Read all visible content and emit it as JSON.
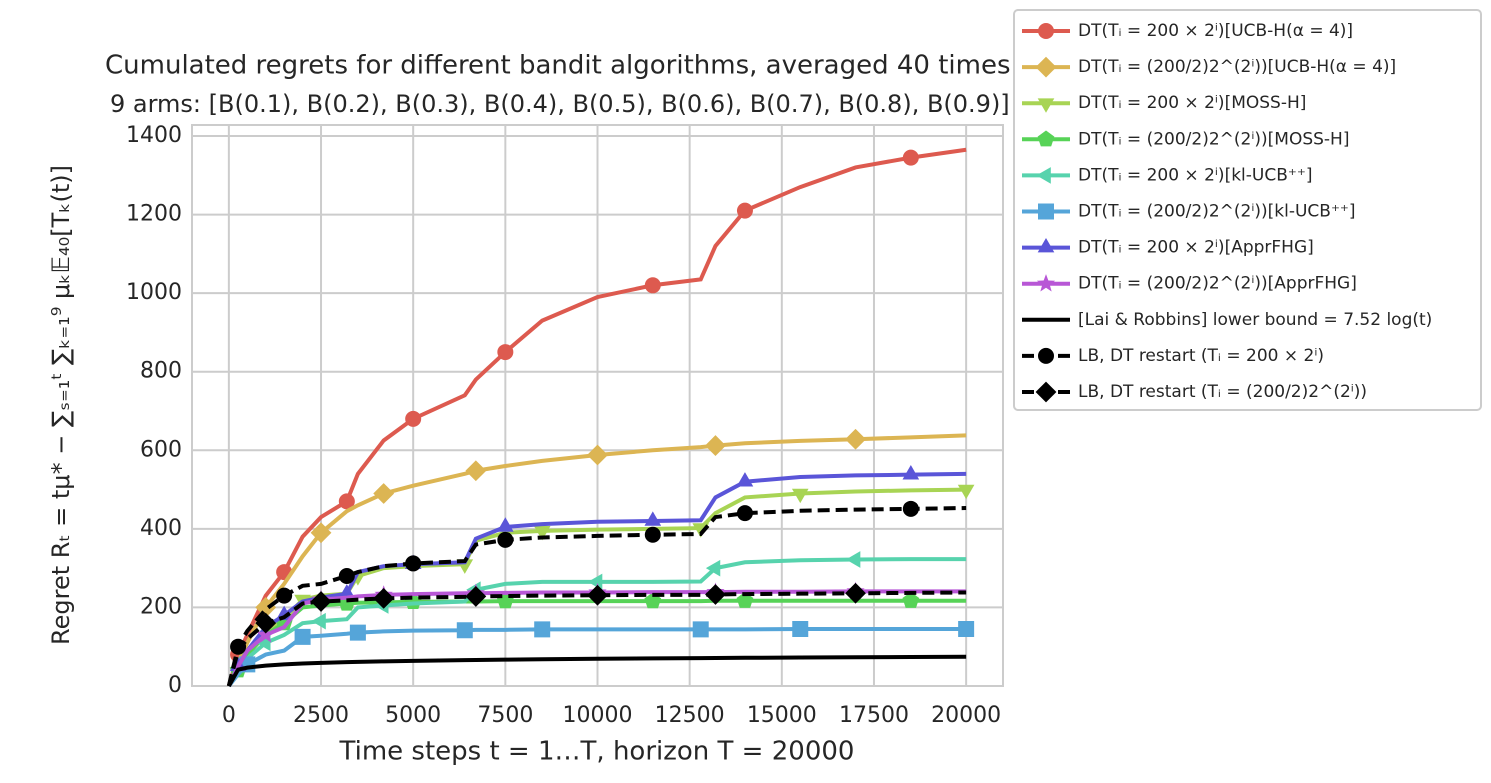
{
  "chart_data": {
    "type": "line",
    "title": "Cumulated regrets for different bandit algorithms, averaged 40 times",
    "subtitle": "9 arms: [B(0.1), B(0.2), B(0.3), B(0.4), B(0.5), B(0.6), B(0.7), B(0.8), B(0.9)]",
    "x_label": "Time steps t = 1…T, horizon T = 20000",
    "y_label": "Regret Rₜ = tμ* − ∑ₛ₌₁ᵗ ∑ₖ₌₁⁹ μₖ𝔼₄₀[Tₖ(t)]",
    "x": [
      0,
      250,
      500,
      1000,
      1500,
      2000,
      2500,
      3200,
      3500,
      4200,
      5000,
      6400,
      6700,
      7500,
      8500,
      10000,
      11500,
      12800,
      13200,
      14000,
      15500,
      17000,
      18500,
      20000
    ],
    "xlim": [
      -1000,
      21000
    ],
    "xticks": [
      0,
      2500,
      5000,
      7500,
      10000,
      12500,
      15000,
      17500,
      20000
    ],
    "ylim": [
      0,
      1428
    ],
    "yticks": [
      0,
      200,
      400,
      600,
      800,
      1000,
      1200,
      1400
    ],
    "grid": true,
    "series": [
      {
        "name": "DT(Tᵢ = 200 × 2ⁱ)[UCB-H(α = 4)]",
        "color": "#dd5a4f",
        "marker": "circle",
        "dashed": false,
        "values": [
          0,
          80,
          130,
          230,
          290,
          380,
          430,
          470,
          540,
          625,
          680,
          740,
          780,
          850,
          930,
          990,
          1020,
          1035,
          1120,
          1210,
          1270,
          1320,
          1345,
          1365
        ]
      },
      {
        "name": "DT(Tᵢ = (200/2)2^(2ⁱ))[UCB-H(α = 4)]",
        "color": "#dcb553",
        "marker": "diamond",
        "dashed": false,
        "values": [
          0,
          60,
          110,
          200,
          260,
          330,
          390,
          445,
          460,
          490,
          510,
          540,
          548,
          560,
          573,
          588,
          600,
          608,
          612,
          618,
          624,
          628,
          633,
          638
        ]
      },
      {
        "name": "DT(Tᵢ = 200 × 2ⁱ)[MOSS-H]",
        "color": "#a8d454",
        "marker": "tri-down",
        "dashed": false,
        "values": [
          0,
          40,
          80,
          140,
          170,
          220,
          230,
          235,
          280,
          300,
          305,
          310,
          370,
          390,
          395,
          398,
          400,
          402,
          440,
          480,
          490,
          495,
          498,
          500
        ]
      },
      {
        "name": "DT(Tᵢ = (200/2)2^(2ⁱ))[MOSS-H]",
        "color": "#57d357",
        "marker": "pentagon",
        "dashed": false,
        "values": [
          0,
          40,
          80,
          130,
          160,
          200,
          205,
          210,
          212,
          213,
          214,
          215,
          215,
          216,
          216,
          216,
          216,
          216,
          217,
          217,
          217,
          217,
          217,
          217
        ]
      },
      {
        "name": "DT(Tᵢ = 200 × 2ⁱ)[kl-UCB⁺⁺]",
        "color": "#57d3ad",
        "marker": "tri-left",
        "dashed": false,
        "values": [
          0,
          40,
          70,
          110,
          130,
          160,
          165,
          170,
          200,
          205,
          210,
          215,
          245,
          260,
          265,
          265,
          265,
          266,
          300,
          315,
          320,
          322,
          323,
          323
        ]
      },
      {
        "name": "DT(Tᵢ = (200/2)2^(2ⁱ))[kl-UCB⁺⁺]",
        "color": "#55a5d9",
        "marker": "square",
        "dashed": false,
        "values": [
          0,
          30,
          55,
          80,
          90,
          125,
          128,
          133,
          136,
          139,
          141,
          142,
          143,
          143,
          144,
          144,
          144,
          144,
          144,
          144,
          145,
          145,
          145,
          145
        ]
      },
      {
        "name": "DT(Tᵢ = 200 × 2ⁱ)[ApprFHG]",
        "color": "#5a55d8",
        "marker": "tri-up",
        "dashed": false,
        "values": [
          0,
          50,
          90,
          150,
          180,
          215,
          225,
          235,
          290,
          305,
          310,
          315,
          375,
          405,
          412,
          418,
          420,
          422,
          480,
          520,
          532,
          536,
          538,
          540
        ]
      },
      {
        "name": "DT(Tᵢ = (200/2)2^(2ⁱ))[ApprFHG]",
        "color": "#b857d6",
        "marker": "star",
        "dashed": false,
        "values": [
          0,
          50,
          90,
          130,
          150,
          210,
          220,
          225,
          228,
          232,
          234,
          236,
          236,
          237,
          238,
          238,
          239,
          239,
          239,
          240,
          240,
          241,
          241,
          241
        ]
      },
      {
        "name": "[Lai & Robbins] lower bound = 7.52 log(t)",
        "color": "#000000",
        "marker": "none",
        "dashed": false,
        "values": [
          0,
          41.5,
          46.7,
          51.9,
          55,
          57.2,
          58.8,
          60.7,
          61.4,
          62.7,
          64,
          65.9,
          66.2,
          67.1,
          68,
          69.3,
          70.3,
          71.1,
          71.3,
          71.8,
          72.5,
          73.2,
          73.8,
          74.5
        ]
      },
      {
        "name": "LB, DT restart (Tᵢ = 200 × 2ⁱ)",
        "color": "#000000",
        "marker": "circle",
        "dashed": true,
        "values": [
          0,
          100,
          140,
          195,
          230,
          255,
          260,
          280,
          290,
          305,
          312,
          318,
          360,
          372,
          378,
          382,
          385,
          387,
          430,
          440,
          446,
          449,
          451,
          453
        ]
      },
      {
        "name": "LB, DT restart (Tᵢ = (200/2)2^(2ⁱ))",
        "color": "#000000",
        "marker": "diamond",
        "dashed": true,
        "values": [
          0,
          90,
          120,
          160,
          175,
          210,
          215,
          218,
          220,
          223,
          225,
          227,
          228,
          229,
          230,
          231,
          232,
          232,
          233,
          234,
          235,
          236,
          237,
          238
        ]
      }
    ]
  }
}
